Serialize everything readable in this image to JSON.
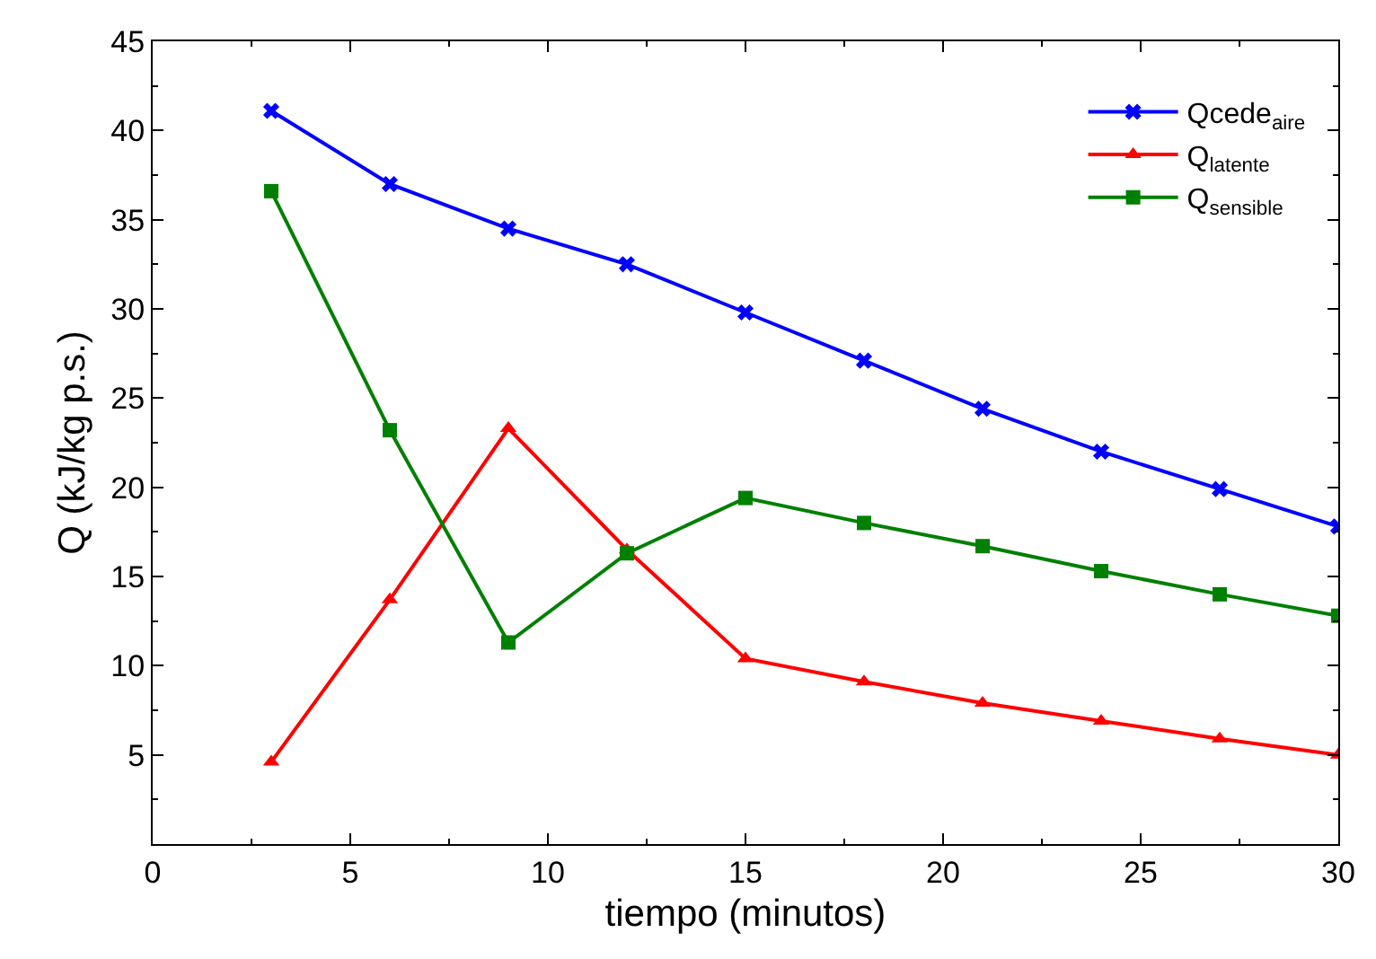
{
  "chart_data": {
    "type": "line",
    "xlabel": "tiempo (minutos)",
    "ylabel": "Q (kJ/kg p.s.)",
    "x": [
      3,
      6,
      9,
      12,
      15,
      18,
      21,
      24,
      27,
      30
    ],
    "series": [
      {
        "name": "Qcede$_{aire}$",
        "color": "#0000ff",
        "marker": "cross",
        "values": [
          41.1,
          37.0,
          34.5,
          32.5,
          29.8,
          27.1,
          24.4,
          22.0,
          19.9,
          17.8
        ]
      },
      {
        "name": "Q$_{latente}$",
        "color": "#ff0000",
        "marker": "triangle",
        "values": [
          4.6,
          13.7,
          23.3,
          16.5,
          10.4,
          9.1,
          7.9,
          6.9,
          5.9,
          5.0
        ]
      },
      {
        "name": "Q$_{sensible}$",
        "color": "#008000",
        "marker": "square",
        "values": [
          36.6,
          23.2,
          11.3,
          16.3,
          19.4,
          18.0,
          16.7,
          15.3,
          14.0,
          12.8
        ]
      }
    ],
    "xlim": [
      0,
      30
    ],
    "xticks": [
      0,
      5,
      10,
      15,
      20,
      25,
      30
    ],
    "ylim": [
      0,
      45
    ],
    "yticks": [
      5,
      10,
      15,
      20,
      25,
      30,
      35,
      40,
      45
    ],
    "legend": "top right",
    "line_style": "solid"
  }
}
